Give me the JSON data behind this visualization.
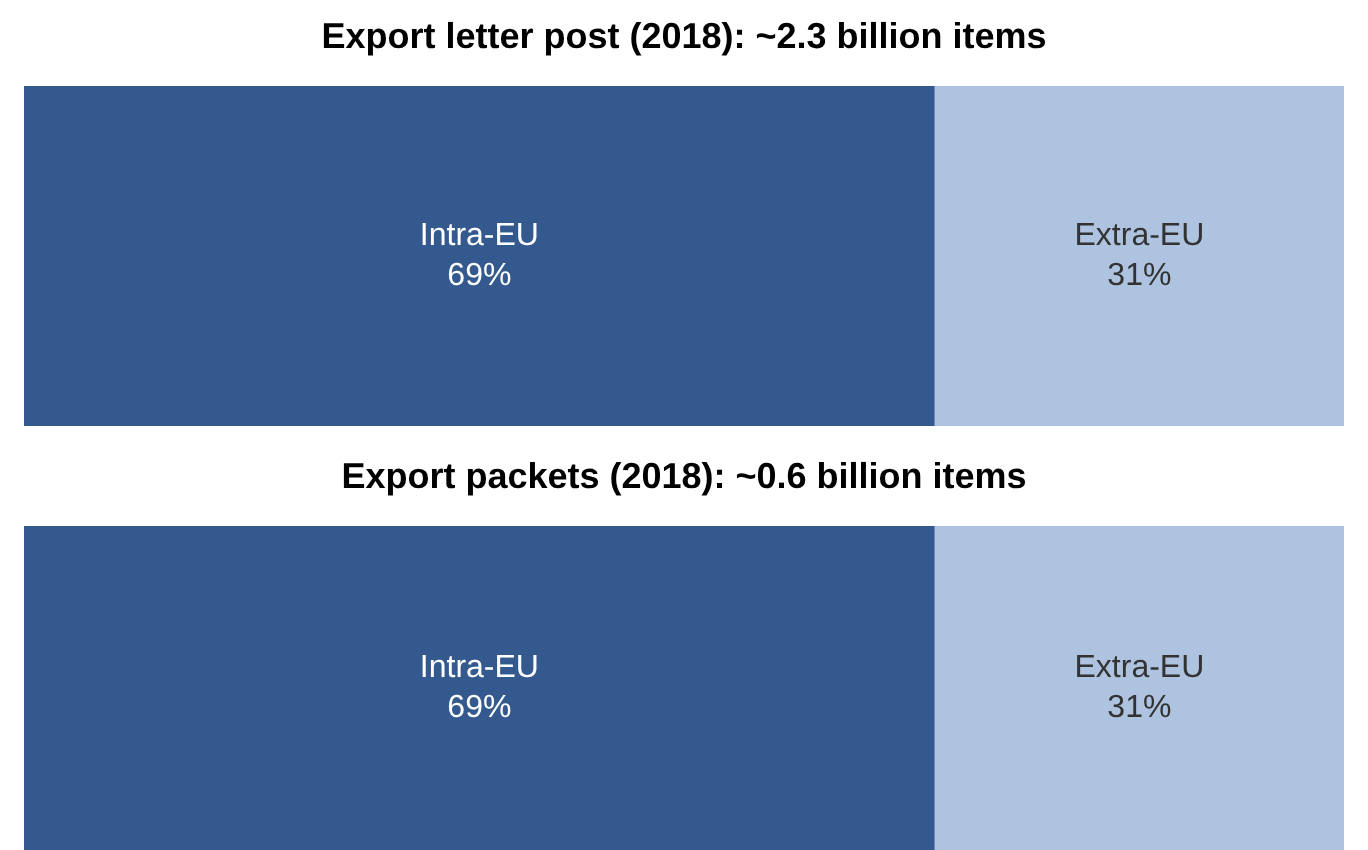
{
  "chart_data": [
    {
      "type": "bar",
      "title": "Export letter post (2018): ~2.3 billion items",
      "orientation": "horizontal",
      "stacked": true,
      "categories": [
        null
      ],
      "xlim": [
        0,
        100
      ],
      "tick_labels": false,
      "series": [
        {
          "name": "Intra-EU",
          "color": "#34598f",
          "values": [
            69
          ],
          "value_labels": [
            "69%"
          ]
        },
        {
          "name": "Extra-EU",
          "color": "#adc3e0",
          "values": [
            31
          ],
          "value_labels": [
            "31%"
          ]
        }
      ]
    },
    {
      "type": "bar",
      "title": "Export packets (2018): ~0.6 billion items",
      "orientation": "horizontal",
      "stacked": true,
      "categories": [
        null
      ],
      "xlim": [
        0,
        100
      ],
      "tick_labels": false,
      "series": [
        {
          "name": "Intra-EU",
          "color": "#34598f",
          "values": [
            69
          ],
          "value_labels": [
            "69%"
          ]
        },
        {
          "name": "Extra-EU",
          "color": "#adc3e0",
          "values": [
            31
          ],
          "value_labels": [
            "31%"
          ]
        }
      ]
    }
  ]
}
